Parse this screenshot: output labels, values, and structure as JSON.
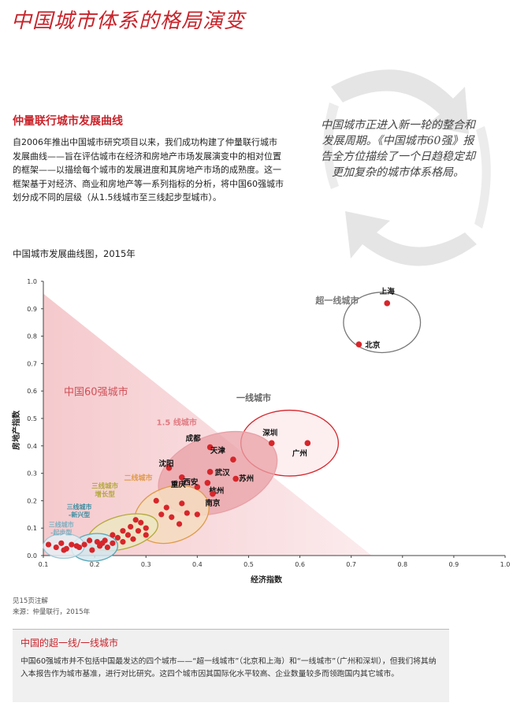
{
  "title": "中国城市体系的格局演变",
  "section_heading": "仲量联行城市发展曲线",
  "intro": "自2006年推出中国城市研究项目以来，我们成功构建了仲量联行城市发展曲线——旨在评估城市在经济和房地产市场发展演变中的相对位置的框架——以描绘每个城市的发展进度和其房地产市场的成熟度。这一框架基于对经济、商业和房地产等一系列指标的分析，将中国60强城市划分成不同的层级（从1.5线城市至三线起步型城市）。",
  "pull_quote": "中国城市正进入新一轮的整合和发展周期。《中国城市60强》报告全方位描绘了一个日趋稳定却更加复杂的城市体系格局。",
  "notes": {
    "line1": "见15页注解",
    "line2": "来源：仲量联行，2015年"
  },
  "sidebar_box": {
    "heading": "中国的超一线/一线城市",
    "text": "中国60强城市并不包括中国最发达的四个城市——“超一线城市”（北京和上海）和“一线城市”（广州和深圳），但我们将其纳入本报告作为城市基准，进行对比研究。这四个城市因其国际化水平较高、企业数量较多而领跑国内其它城市。"
  },
  "colors": {
    "accent": "#c8242b",
    "dot": "#d6262b",
    "triangle": "#f7d4d6",
    "tier15": "#e8a0a6",
    "tier2": "#e09a48",
    "tier3g": "#b2a83a",
    "tier3e": "#5aa7b8",
    "tier3s": "#9ec6d4"
  },
  "chart_data": {
    "type": "scatter",
    "title": "中国城市发展曲线图，2015年",
    "xlabel": "经济指数",
    "ylabel": "房地产指数",
    "xlim": [
      0.1,
      1.0
    ],
    "ylim": [
      0.0,
      1.0
    ],
    "x_ticks": [
      "0.1",
      "0.2",
      "0.3",
      "0.4",
      "0.5",
      "0.6",
      "0.7",
      "0.8",
      "0.9",
      "1.0"
    ],
    "y_ticks": [
      "0.0",
      "0.1",
      "0.2",
      "0.3",
      "0.4",
      "0.5",
      "0.6",
      "0.7",
      "0.8",
      "0.9",
      "1.0"
    ],
    "grid": false,
    "region_label": "中国60强城市",
    "groups": [
      {
        "label": "超一线城市",
        "ellipse": {
          "cx": 0.76,
          "cy": 0.85,
          "rx": 0.075,
          "ry": 0.11
        }
      },
      {
        "label": "一线城市",
        "ellipse": {
          "cx": 0.58,
          "cy": 0.41,
          "rx": 0.095,
          "ry": 0.12
        }
      },
      {
        "label": "1.5 线城市",
        "ellipse": {
          "cx": 0.44,
          "cy": 0.3,
          "rx": 0.12,
          "ry": 0.14
        }
      },
      {
        "label": "二线城市",
        "ellipse": {
          "cx": 0.35,
          "cy": 0.15,
          "rx": 0.075,
          "ry": 0.1
        }
      },
      {
        "label": "三线城市\n增长型",
        "ellipse": {
          "cx": 0.255,
          "cy": 0.085,
          "rx": 0.07,
          "ry": 0.06
        }
      },
      {
        "label": "三线城市\n-新兴型",
        "ellipse": {
          "cx": 0.2,
          "cy": 0.03,
          "rx": 0.045,
          "ry": 0.05
        }
      },
      {
        "label": "三线城市\n-起步型",
        "ellipse": {
          "cx": 0.14,
          "cy": 0.035,
          "rx": 0.04,
          "ry": 0.045
        }
      }
    ],
    "labeled_points": [
      {
        "name": "上海",
        "x": 0.77,
        "y": 0.92
      },
      {
        "name": "北京",
        "x": 0.715,
        "y": 0.77
      },
      {
        "name": "深圳",
        "x": 0.545,
        "y": 0.41
      },
      {
        "name": "广州",
        "x": 0.615,
        "y": 0.41
      },
      {
        "name": "成都",
        "x": 0.425,
        "y": 0.395
      },
      {
        "name": "天津",
        "x": 0.47,
        "y": 0.35
      },
      {
        "name": "沈阳",
        "x": 0.345,
        "y": 0.32
      },
      {
        "name": "武汉",
        "x": 0.425,
        "y": 0.305
      },
      {
        "name": "重庆",
        "x": 0.37,
        "y": 0.285
      },
      {
        "name": "苏州",
        "x": 0.475,
        "y": 0.28
      },
      {
        "name": "西安",
        "x": 0.4,
        "y": 0.25
      },
      {
        "name": "杭州",
        "x": 0.42,
        "y": 0.265
      },
      {
        "name": "南京",
        "x": 0.43,
        "y": 0.225
      }
    ],
    "other_points": [
      [
        0.32,
        0.2
      ],
      [
        0.34,
        0.175
      ],
      [
        0.35,
        0.14
      ],
      [
        0.37,
        0.19
      ],
      [
        0.38,
        0.155
      ],
      [
        0.4,
        0.15
      ],
      [
        0.365,
        0.115
      ],
      [
        0.33,
        0.15
      ],
      [
        0.28,
        0.13
      ],
      [
        0.29,
        0.12
      ],
      [
        0.27,
        0.105
      ],
      [
        0.3,
        0.1
      ],
      [
        0.255,
        0.09
      ],
      [
        0.285,
        0.09
      ],
      [
        0.265,
        0.075
      ],
      [
        0.3,
        0.075
      ],
      [
        0.245,
        0.065
      ],
      [
        0.275,
        0.06
      ],
      [
        0.235,
        0.075
      ],
      [
        0.255,
        0.05
      ],
      [
        0.19,
        0.055
      ],
      [
        0.205,
        0.05
      ],
      [
        0.22,
        0.055
      ],
      [
        0.235,
        0.045
      ],
      [
        0.18,
        0.04
      ],
      [
        0.21,
        0.035
      ],
      [
        0.225,
        0.03
      ],
      [
        0.195,
        0.02
      ],
      [
        0.17,
        0.03
      ],
      [
        0.215,
        0.045
      ],
      [
        0.11,
        0.04
      ],
      [
        0.125,
        0.03
      ],
      [
        0.135,
        0.045
      ],
      [
        0.145,
        0.025
      ],
      [
        0.155,
        0.04
      ],
      [
        0.165,
        0.035
      ],
      [
        0.14,
        0.02
      ]
    ]
  }
}
